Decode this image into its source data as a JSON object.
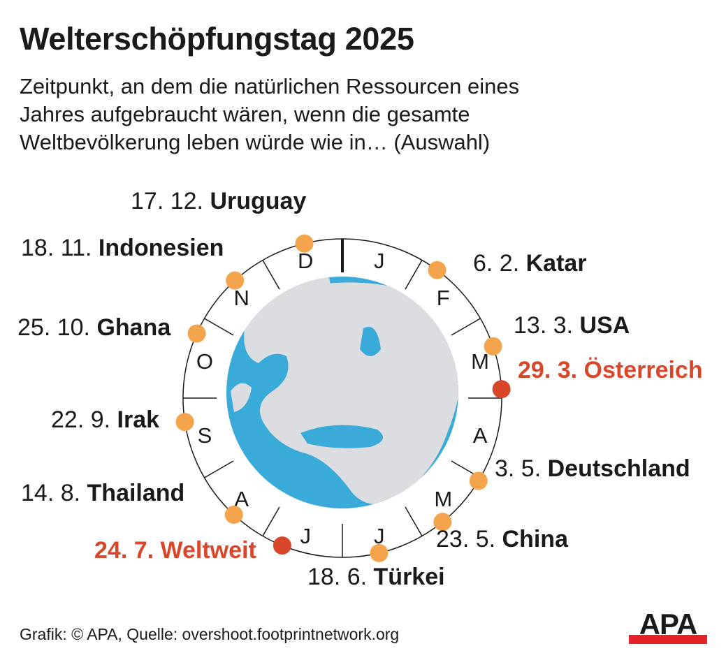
{
  "title": "Welterschöpfungstag 2025",
  "subtitle": [
    "Zeitpunkt, an dem die natürlichen Ressourcen eines",
    "Jahres aufgebraucht wären, wenn die gesamte",
    "Weltbevölkerung leben würde wie in… (Auswahl)"
  ],
  "months": [
    "J",
    "F",
    "M",
    "A",
    "M",
    "J",
    "J",
    "A",
    "S",
    "O",
    "N",
    "D"
  ],
  "colors": {
    "dot": "#f4a44c",
    "highlight": "#d9472b",
    "ocean": "#3aaad8",
    "land": "#dcdde0"
  },
  "entries": [
    {
      "date": "6. 2.",
      "country": "Katar",
      "day": 37,
      "highlight": false
    },
    {
      "date": "13. 3.",
      "country": "USA",
      "day": 72,
      "highlight": false
    },
    {
      "date": "29. 3.",
      "country": "Österreich",
      "day": 88,
      "highlight": true
    },
    {
      "date": "3. 5.",
      "country": "Deutschland",
      "day": 123,
      "highlight": false
    },
    {
      "date": "23. 5.",
      "country": "China",
      "day": 143,
      "highlight": false
    },
    {
      "date": "18. 6.",
      "country": "Türkei",
      "day": 169,
      "highlight": false
    },
    {
      "date": "24. 7.",
      "country": "Weltweit",
      "day": 205,
      "highlight": true
    },
    {
      "date": "14. 8.",
      "country": "Thailand",
      "day": 226,
      "highlight": false
    },
    {
      "date": "22. 9.",
      "country": "Irak",
      "day": 265,
      "highlight": false
    },
    {
      "date": "25. 10.",
      "country": "Ghana",
      "day": 298,
      "highlight": false
    },
    {
      "date": "18. 11.",
      "country": "Indonesien",
      "day": 322,
      "highlight": false
    },
    {
      "date": "17. 12.",
      "country": "Uruguay",
      "day": 351,
      "highlight": false
    }
  ],
  "footer": "Grafik: © APA, Quelle: overshoot.footprintnetwork.org",
  "logo": "APA"
}
